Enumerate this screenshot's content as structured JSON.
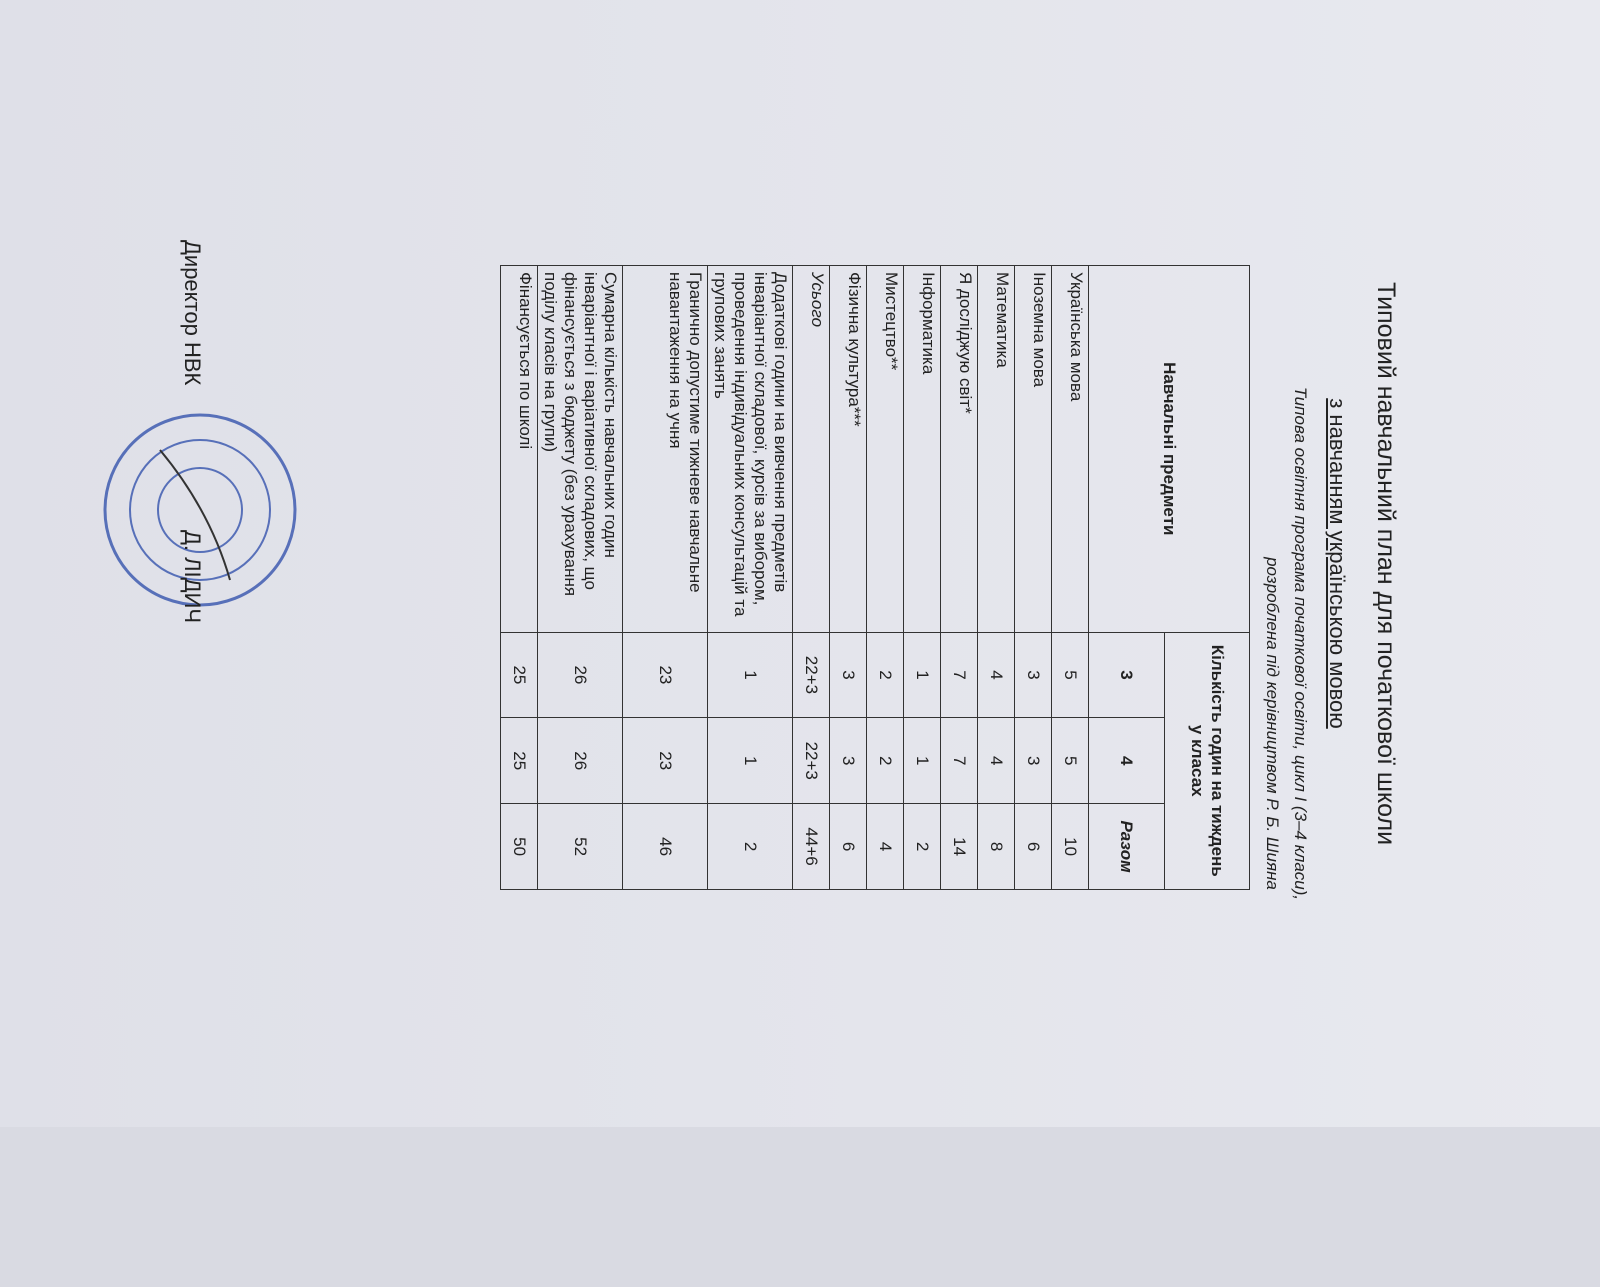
{
  "header": {
    "title": "Типовий навчальний план для початкової школи",
    "subtitle": "з навчанням українською мовою",
    "program_line1": "Типова освітня програма початкової освіти, цикл I (3–4 класи),",
    "program_line2": "розроблена під керівництвом Р. Б. Шияна"
  },
  "table": {
    "subject_header": "Навчальні предмети",
    "hours_header": "Кількість годин на тиждень у класах",
    "columns": [
      "3",
      "4",
      "Разом"
    ],
    "rows": [
      [
        "Українська мова",
        5,
        5,
        10
      ],
      [
        "Іноземна мова",
        3,
        3,
        6
      ],
      [
        "Математика",
        4,
        4,
        8
      ],
      [
        "Я досліджую світ*",
        7,
        7,
        14
      ],
      [
        "Інформатика",
        1,
        1,
        2
      ],
      [
        "Мистецтво**",
        2,
        2,
        4
      ],
      [
        "Фізична культура***",
        3,
        3,
        6
      ],
      [
        "Усього",
        "22+3",
        "22+3",
        "44+6"
      ],
      [
        "Додаткові години на вивчення предметів інваріантної складової, курсів за вибором, проведення індивідуальних консультацій та групових занять",
        1,
        1,
        2
      ],
      [
        "Гранично допустиме тижневе навчальне навантаження на учня",
        23,
        23,
        46
      ],
      [
        "Сумарна кількість навчальних годин інваріантної і варіативної складових, що фінансується з бюджету (без урахування поділу класів на групи)",
        26,
        26,
        52
      ],
      [
        "Фінансується по школі",
        25,
        25,
        50
      ]
    ]
  },
  "footer": {
    "director": "Директор НВК",
    "name": "Д. ЛІДИЧ"
  }
}
